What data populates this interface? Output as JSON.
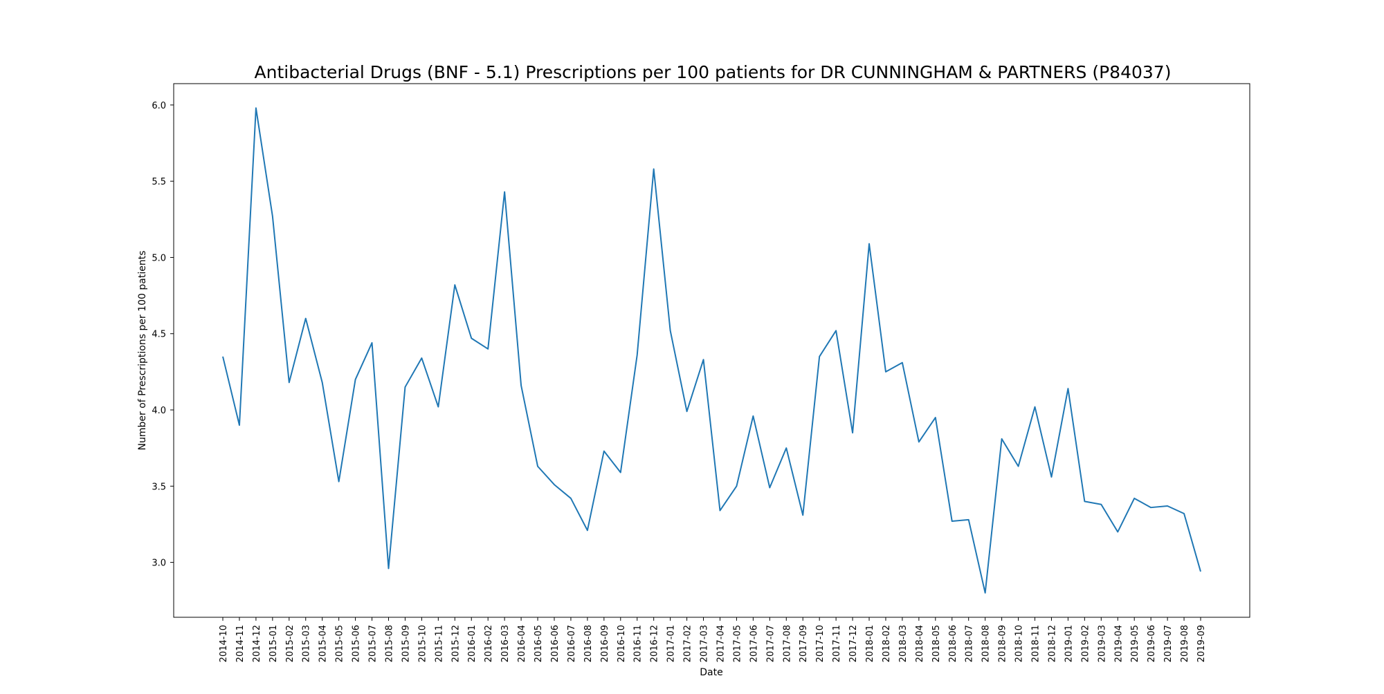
{
  "chart_data": {
    "type": "line",
    "title": "Antibacterial Drugs (BNF - 5.1) Prescriptions per 100 patients for DR CUNNINGHAM & PARTNERS (P84037)",
    "xlabel": "Date",
    "ylabel": "Number of Prescriptions per 100 patients",
    "ylim": [
      2.64,
      6.14
    ],
    "yticks": [
      "3.0",
      "3.5",
      "4.0",
      "4.5",
      "5.0",
      "5.5",
      "6.0"
    ],
    "grid": false,
    "line_color": "#1f77b4",
    "categories": [
      "2014-10",
      "2014-11",
      "2014-12",
      "2015-01",
      "2015-02",
      "2015-03",
      "2015-04",
      "2015-05",
      "2015-06",
      "2015-07",
      "2015-08",
      "2015-09",
      "2015-10",
      "2015-11",
      "2015-12",
      "2016-01",
      "2016-02",
      "2016-03",
      "2016-04",
      "2016-05",
      "2016-06",
      "2016-07",
      "2016-08",
      "2016-09",
      "2016-10",
      "2016-11",
      "2016-12",
      "2017-01",
      "2017-02",
      "2017-03",
      "2017-04",
      "2017-05",
      "2017-06",
      "2017-07",
      "2017-08",
      "2017-09",
      "2017-10",
      "2017-11",
      "2017-12",
      "2018-01",
      "2018-02",
      "2018-03",
      "2018-04",
      "2018-05",
      "2018-06",
      "2018-07",
      "2018-08",
      "2018-09",
      "2018-10",
      "2018-11",
      "2018-12",
      "2019-01",
      "2019-02",
      "2019-03",
      "2019-04",
      "2019-05",
      "2019-06",
      "2019-07",
      "2019-08",
      "2019-09"
    ],
    "values": [
      4.35,
      3.9,
      5.98,
      5.27,
      4.18,
      4.6,
      4.18,
      3.53,
      4.2,
      4.44,
      2.96,
      4.15,
      4.34,
      4.02,
      4.82,
      4.47,
      4.4,
      5.43,
      4.16,
      3.63,
      3.51,
      3.42,
      3.21,
      3.73,
      3.59,
      4.36,
      5.58,
      4.52,
      3.99,
      4.33,
      3.34,
      3.5,
      3.96,
      3.49,
      3.75,
      3.31,
      4.35,
      4.52,
      3.85,
      5.09,
      4.25,
      4.31,
      3.79,
      3.95,
      3.27,
      3.28,
      2.8,
      3.81,
      3.63,
      4.02,
      3.56,
      4.14,
      3.4,
      3.38,
      3.2,
      3.42,
      3.36,
      3.37,
      3.32,
      2.94
    ]
  }
}
